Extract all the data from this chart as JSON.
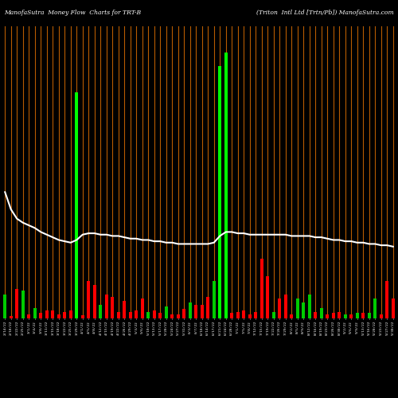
{
  "title_left": "ManofaSutra  Money Flow  Charts for TRT-B",
  "title_right": "(Triton  Intl Ltd [Trtn/Pb]) ManofaSutra.com",
  "background_color": "#000000",
  "bar_color_bright_green": "#00ff00",
  "bar_color_green": "#00cc00",
  "bar_color_red": "#ff0000",
  "bar_color_orange": "#cc6600",
  "line_color": "#ffffff",
  "dates": [
    "2/14/22",
    "2/18/22",
    "2/22/22",
    "2/25/22",
    "3/1/22",
    "3/4/22",
    "3/8/22",
    "3/11/22",
    "3/15/22",
    "3/18/22",
    "3/22/22",
    "3/25/22",
    "3/29/22",
    "4/1/22",
    "4/5/22",
    "4/8/22",
    "4/12/22",
    "4/15/22",
    "4/19/22",
    "4/22/22",
    "4/26/22",
    "4/29/22",
    "5/3/22",
    "5/6/22",
    "5/10/22",
    "5/13/22",
    "5/17/22",
    "5/20/22",
    "5/24/22",
    "5/27/22",
    "5/31/22",
    "6/3/22",
    "6/7/22",
    "6/10/22",
    "6/14/22",
    "6/17/22",
    "6/21/22",
    "6/24/22",
    "6/28/22",
    "7/1/22",
    "7/5/22",
    "7/8/22",
    "7/12/22",
    "7/15/22",
    "7/19/22",
    "7/22/22",
    "7/26/22",
    "7/29/22",
    "8/2/22",
    "8/5/22",
    "8/9/22",
    "8/12/22",
    "8/16/22",
    "8/19/22",
    "8/23/22",
    "8/26/22",
    "8/30/22",
    "9/2/22",
    "9/6/22",
    "9/9/22",
    "9/13/22",
    "9/16/22",
    "9/20/22",
    "9/23/22",
    "9/27/22",
    "9/30/22"
  ],
  "bar_values": [
    1.8,
    0.15,
    2.2,
    2.1,
    0.3,
    0.8,
    0.4,
    0.6,
    0.6,
    0.3,
    0.5,
    0.6,
    17.0,
    0.25,
    2.8,
    2.5,
    1.0,
    1.8,
    1.6,
    0.5,
    1.3,
    0.5,
    0.6,
    1.5,
    0.5,
    0.6,
    0.4,
    0.9,
    0.3,
    0.3,
    0.7,
    1.2,
    1.0,
    1.0,
    1.6,
    2.8,
    19.0,
    20.0,
    0.4,
    0.5,
    0.6,
    0.3,
    0.5,
    4.5,
    3.2,
    0.5,
    1.5,
    1.8,
    0.3,
    1.5,
    1.2,
    1.8,
    0.5,
    0.8,
    0.3,
    0.4,
    0.5,
    0.3,
    0.3,
    0.4,
    0.4,
    0.4,
    1.5,
    0.3,
    2.8,
    1.5
  ],
  "bar_colors": [
    "g",
    "r",
    "r",
    "g",
    "r",
    "g",
    "r",
    "r",
    "r",
    "r",
    "r",
    "r",
    "G",
    "r",
    "r",
    "r",
    "g",
    "r",
    "r",
    "r",
    "r",
    "r",
    "r",
    "r",
    "g",
    "r",
    "r",
    "g",
    "r",
    "r",
    "r",
    "g",
    "r",
    "r",
    "r",
    "g",
    "G",
    "G",
    "r",
    "r",
    "r",
    "r",
    "r",
    "r",
    "r",
    "g",
    "r",
    "r",
    "r",
    "g",
    "g",
    "g",
    "r",
    "g",
    "r",
    "r",
    "r",
    "g",
    "r",
    "g",
    "r",
    "g",
    "g",
    "r",
    "r",
    "r"
  ],
  "ma_line": [
    9.5,
    8.2,
    7.5,
    7.2,
    7.0,
    6.8,
    6.5,
    6.3,
    6.1,
    5.9,
    5.8,
    5.7,
    5.9,
    6.3,
    6.4,
    6.4,
    6.3,
    6.3,
    6.2,
    6.2,
    6.1,
    6.0,
    6.0,
    5.9,
    5.9,
    5.8,
    5.8,
    5.7,
    5.7,
    5.6,
    5.6,
    5.6,
    5.6,
    5.6,
    5.6,
    5.7,
    6.2,
    6.5,
    6.5,
    6.4,
    6.4,
    6.3,
    6.3,
    6.3,
    6.3,
    6.3,
    6.3,
    6.3,
    6.2,
    6.2,
    6.2,
    6.2,
    6.1,
    6.1,
    6.0,
    5.9,
    5.9,
    5.8,
    5.8,
    5.7,
    5.7,
    5.6,
    5.6,
    5.5,
    5.5,
    5.4
  ],
  "ylim": [
    0,
    22
  ],
  "figsize": [
    5.0,
    5.0
  ],
  "dpi": 100
}
